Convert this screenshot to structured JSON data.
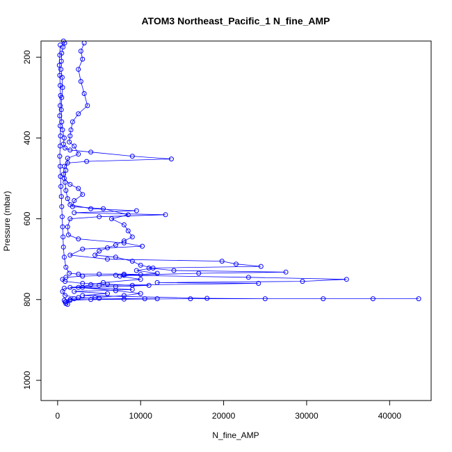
{
  "chart_data": {
    "type": "scatter",
    "title": "ATOM3 Northeast_Pacific_1 N_fine_AMP",
    "xlabel": "N_fine_AMP",
    "ylabel": "Pressure (mbar)",
    "xlim": [
      -2000,
      45000
    ],
    "ylim": [
      1050,
      160
    ],
    "y_reversed": true,
    "x_ticks": [
      0,
      10000,
      20000,
      30000,
      40000
    ],
    "x_tick_labels": [
      "0",
      "10000",
      "20000",
      "30000",
      "40000"
    ],
    "y_ticks": [
      200,
      400,
      600,
      800,
      1000
    ],
    "y_tick_labels": [
      "200",
      "400",
      "600",
      "800",
      "1000"
    ],
    "grid": false,
    "color": "#0000ff",
    "marker": "open-circle",
    "connected": true,
    "series": [
      {
        "points": [
          [
            700,
            160
          ],
          [
            850,
            165
          ],
          [
            650,
            175
          ],
          [
            500,
            190
          ],
          [
            450,
            210
          ],
          [
            400,
            230
          ],
          [
            550,
            250
          ],
          [
            600,
            275
          ],
          [
            500,
            300
          ],
          [
            450,
            330
          ],
          [
            500,
            360
          ],
          [
            600,
            380
          ],
          [
            800,
            400
          ],
          [
            700,
            415
          ],
          [
            900,
            425
          ],
          [
            1500,
            430
          ],
          [
            4000,
            435
          ],
          [
            9000,
            445
          ],
          [
            13700,
            452
          ],
          [
            3500,
            458
          ],
          [
            1200,
            462
          ],
          [
            800,
            470
          ],
          [
            700,
            490
          ],
          [
            900,
            510
          ],
          [
            1000,
            530
          ],
          [
            1200,
            550
          ],
          [
            1500,
            565
          ],
          [
            4000,
            575
          ],
          [
            9500,
            580
          ],
          [
            2000,
            585
          ],
          [
            13000,
            590
          ],
          [
            5000,
            595
          ],
          [
            1500,
            600
          ],
          [
            1200,
            620
          ],
          [
            1300,
            640
          ],
          [
            2500,
            650
          ],
          [
            8000,
            660
          ],
          [
            10200,
            668
          ],
          [
            3000,
            675
          ],
          [
            1500,
            690
          ],
          [
            6000,
            700
          ],
          [
            19800,
            705
          ],
          [
            21500,
            712
          ],
          [
            24500,
            718
          ],
          [
            11000,
            722
          ],
          [
            14000,
            728
          ],
          [
            27500,
            732
          ],
          [
            17000,
            735
          ],
          [
            8000,
            740
          ],
          [
            23000,
            745
          ],
          [
            34800,
            750
          ],
          [
            29500,
            755
          ],
          [
            12000,
            758
          ],
          [
            24200,
            760
          ],
          [
            5000,
            765
          ],
          [
            1500,
            770
          ],
          [
            9000,
            775
          ],
          [
            2000,
            780
          ],
          [
            6000,
            785
          ],
          [
            3000,
            790
          ],
          [
            18000,
            797
          ],
          [
            25000,
            798
          ],
          [
            32000,
            798
          ],
          [
            38000,
            798
          ],
          [
            43500,
            798
          ],
          [
            16000,
            798
          ],
          [
            1500,
            800
          ],
          [
            1000,
            805
          ],
          [
            1000,
            810
          ],
          [
            1200,
            812
          ]
        ]
      },
      {
        "points": [
          [
            3200,
            165
          ],
          [
            2800,
            185
          ],
          [
            3000,
            205
          ],
          [
            2500,
            230
          ],
          [
            2800,
            260
          ],
          [
            3200,
            290
          ],
          [
            3600,
            320
          ],
          [
            2500,
            340
          ],
          [
            1800,
            360
          ],
          [
            1600,
            380
          ],
          [
            1500,
            395
          ],
          [
            1400,
            410
          ],
          [
            2000,
            420
          ],
          [
            2500,
            440
          ],
          [
            1200,
            450
          ],
          [
            1000,
            480
          ],
          [
            800,
            500
          ],
          [
            1500,
            515
          ],
          [
            2500,
            525
          ],
          [
            3000,
            540
          ],
          [
            2000,
            555
          ],
          [
            1800,
            570
          ],
          [
            5500,
            575
          ],
          [
            8500,
            590
          ],
          [
            6500,
            600
          ],
          [
            8000,
            615
          ],
          [
            8500,
            630
          ],
          [
            9000,
            645
          ],
          [
            8000,
            655
          ],
          [
            7000,
            665
          ],
          [
            6000,
            672
          ],
          [
            5000,
            680
          ],
          [
            4500,
            690
          ],
          [
            7000,
            695
          ],
          [
            9000,
            705
          ],
          [
            10000,
            715
          ],
          [
            11500,
            722
          ],
          [
            9500,
            728
          ],
          [
            12000,
            735
          ],
          [
            7500,
            742
          ],
          [
            10000,
            750
          ],
          [
            5500,
            758
          ],
          [
            4000,
            763
          ],
          [
            2500,
            770
          ],
          [
            7000,
            778
          ],
          [
            10000,
            785
          ],
          [
            8000,
            790
          ],
          [
            4500,
            795
          ],
          [
            2000,
            798
          ],
          [
            800,
            802
          ]
        ]
      },
      {
        "points": [
          [
            300,
            170
          ],
          [
            250,
            195
          ],
          [
            200,
            220
          ],
          [
            250,
            245
          ],
          [
            300,
            270
          ],
          [
            350,
            295
          ],
          [
            300,
            320
          ],
          [
            250,
            345
          ],
          [
            300,
            370
          ],
          [
            350,
            395
          ],
          [
            300,
            420
          ],
          [
            250,
            445
          ],
          [
            300,
            470
          ],
          [
            350,
            495
          ],
          [
            400,
            520
          ],
          [
            450,
            545
          ],
          [
            500,
            570
          ],
          [
            550,
            595
          ],
          [
            600,
            620
          ],
          [
            650,
            645
          ],
          [
            700,
            670
          ],
          [
            800,
            695
          ],
          [
            1000,
            720
          ],
          [
            1400,
            735
          ],
          [
            2500,
            737
          ],
          [
            5000,
            737
          ],
          [
            8000,
            737
          ],
          [
            10000,
            738
          ],
          [
            7000,
            740
          ],
          [
            3000,
            742
          ],
          [
            1000,
            745
          ],
          [
            600,
            750
          ],
          [
            900,
            755
          ],
          [
            3000,
            760
          ],
          [
            6000,
            762
          ],
          [
            9000,
            765
          ],
          [
            11000,
            765
          ],
          [
            7000,
            768
          ],
          [
            3000,
            770
          ],
          [
            800,
            772
          ],
          [
            600,
            780
          ],
          [
            900,
            790
          ],
          [
            2500,
            795
          ],
          [
            5000,
            797
          ],
          [
            10500,
            798
          ],
          [
            12000,
            798
          ],
          [
            8000,
            799
          ],
          [
            4000,
            800
          ],
          [
            1500,
            802
          ],
          [
            900,
            806
          ]
        ]
      }
    ]
  }
}
